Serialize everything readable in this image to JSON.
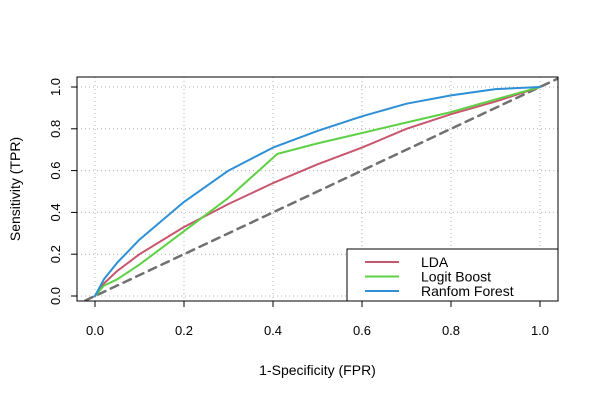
{
  "chart_data": {
    "type": "line",
    "title": "",
    "xlabel": "1-Specificity (FPR)",
    "ylabel": "Sensitivity (TPR)",
    "xlim": [
      0,
      1
    ],
    "ylim": [
      0,
      1
    ],
    "xticks": [
      "0.0",
      "0.2",
      "0.4",
      "0.6",
      "0.8",
      "1.0"
    ],
    "yticks": [
      "0.0",
      "0.2",
      "0.4",
      "0.6",
      "0.8",
      "1.0"
    ],
    "grid": true,
    "legend_position": "bottom-right",
    "series": [
      {
        "name": "LDA",
        "color": "#c8566e",
        "points": [
          [
            0,
            0
          ],
          [
            0.02,
            0.06
          ],
          [
            0.05,
            0.12
          ],
          [
            0.1,
            0.2
          ],
          [
            0.2,
            0.33
          ],
          [
            0.3,
            0.44
          ],
          [
            0.4,
            0.54
          ],
          [
            0.5,
            0.63
          ],
          [
            0.6,
            0.71
          ],
          [
            0.7,
            0.8
          ],
          [
            0.8,
            0.87
          ],
          [
            0.9,
            0.93
          ],
          [
            1,
            1
          ]
        ]
      },
      {
        "name": "Logit Boost",
        "color": "#5dd044",
        "points": [
          [
            0,
            0
          ],
          [
            0.02,
            0.05
          ],
          [
            0.05,
            0.08
          ],
          [
            0.1,
            0.15
          ],
          [
            0.2,
            0.31
          ],
          [
            0.3,
            0.47
          ],
          [
            0.41,
            0.68
          ],
          [
            0.5,
            0.73
          ],
          [
            0.6,
            0.78
          ],
          [
            0.7,
            0.83
          ],
          [
            0.8,
            0.88
          ],
          [
            0.9,
            0.94
          ],
          [
            1,
            1
          ]
        ]
      },
      {
        "name": "Ranfom Forest",
        "color": "#2e8fd6",
        "points": [
          [
            0,
            0
          ],
          [
            0.02,
            0.08
          ],
          [
            0.05,
            0.16
          ],
          [
            0.1,
            0.27
          ],
          [
            0.2,
            0.45
          ],
          [
            0.3,
            0.6
          ],
          [
            0.4,
            0.71
          ],
          [
            0.5,
            0.79
          ],
          [
            0.6,
            0.86
          ],
          [
            0.7,
            0.92
          ],
          [
            0.8,
            0.96
          ],
          [
            0.9,
            0.99
          ],
          [
            1,
            1
          ]
        ]
      },
      {
        "name": "",
        "color": "#707070",
        "dashed": true,
        "points": [
          [
            -0.05,
            -0.05
          ],
          [
            1.05,
            1.05
          ]
        ]
      }
    ],
    "legend": [
      "LDA",
      "Logit Boost",
      "Ranfom Forest"
    ]
  }
}
